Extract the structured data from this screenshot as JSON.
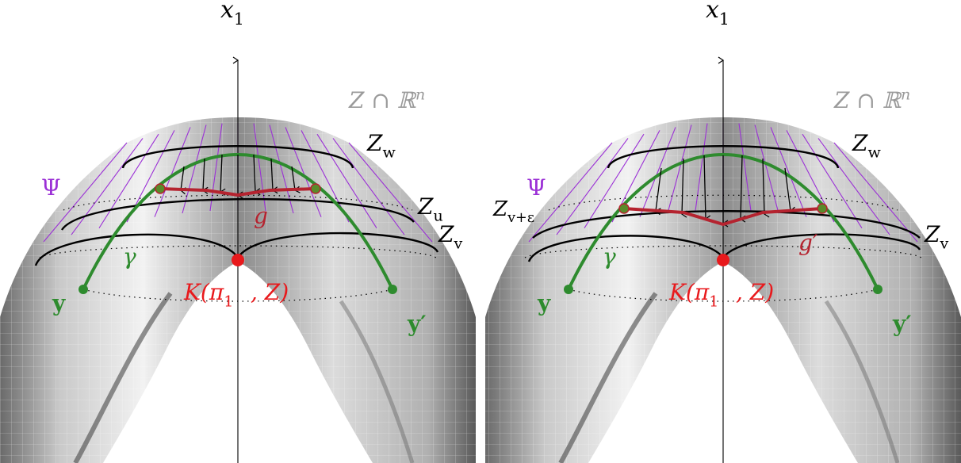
{
  "colors": {
    "green": "#2e8b2e",
    "red": "#e8191c",
    "darkred": "#b5232f",
    "purple": "#9b30d6",
    "gray_label": "#9a9a9a",
    "black": "#000000"
  },
  "panels": [
    {
      "axis_label": "x",
      "axis_sub": "1",
      "space_label": "Z ∩ ℝ",
      "space_sup": "n",
      "psi": "Ψ",
      "z_top": "Z",
      "z_top_sub": "w",
      "z_mid": "Z",
      "z_mid_sub": "u",
      "z_bot": "Z",
      "z_bot_sub": "v",
      "path_label": "g",
      "gamma": "γ",
      "point_left": "y",
      "point_right": "y′",
      "center_label": "K(π",
      "center_sub": "1",
      "center_tail": ", Z)"
    },
    {
      "axis_label": "x",
      "axis_sub": "1",
      "space_label": "Z ∩ ℝ",
      "space_sup": "n",
      "psi": "Ψ",
      "z_top": "Z",
      "z_top_sub": "w",
      "z_mid": "Z",
      "z_mid_sub": "v+ε",
      "z_bot": "Z",
      "z_bot_sub": "v",
      "path_label": "g′",
      "gamma": "γ",
      "point_left": "y",
      "point_right": "y′",
      "center_label": "K(π",
      "center_sub": "1",
      "center_tail": ", Z)"
    }
  ]
}
